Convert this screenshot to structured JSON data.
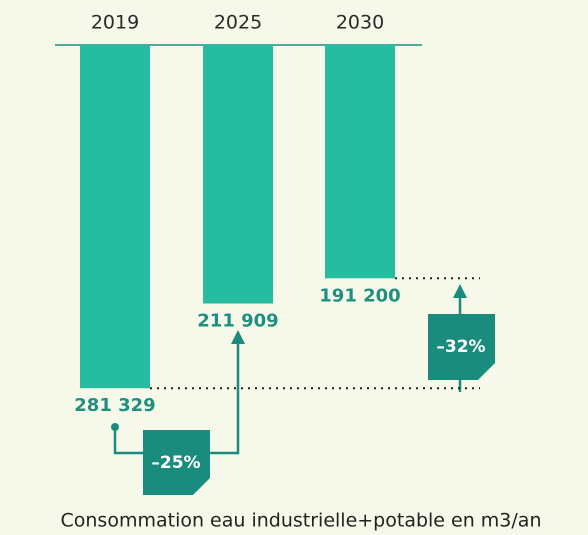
{
  "chart_data": {
    "type": "bar",
    "title": "Consommation eau industrielle+potable en m3/an",
    "categories": [
      "2019",
      "2025",
      "2030"
    ],
    "values": [
      281329,
      211909,
      191200
    ],
    "value_labels": [
      "281 329",
      "211 909",
      "191 200"
    ],
    "color": "#26bc9f",
    "ylim": [
      0,
      300000
    ],
    "annotations": [
      "–25%",
      "–32%"
    ]
  }
}
